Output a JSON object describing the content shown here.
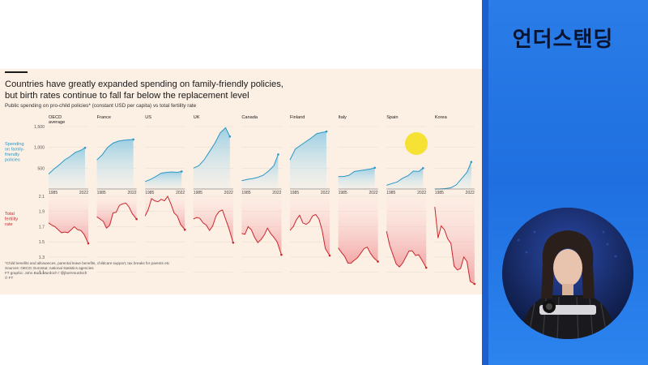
{
  "header": {
    "title_line1": "Countries have greatly expanded spending on family-friendly policies,",
    "title_line2": "but birth rates continue to fall far below the replacement level",
    "subtitle": "Public spending on pro-child policies* (constant USD per capita) vs total fertility rate"
  },
  "notes": {
    "line1": "*Child benefits and allowances, parental leave benefits, childcare support, tax breaks for parents etc",
    "line2": "Sources: OECD; Eurostat; national statistics agencies",
    "line3": "FT graphic: John Burn-Murdoch / @jburnmurdoch",
    "line4": "© FT"
  },
  "brand": "언더스탠딩",
  "chart_data": {
    "type": "area",
    "panels": [
      "OECD average",
      "France",
      "US",
      "UK",
      "Canada",
      "Finland",
      "Italy",
      "Spain",
      "Korea"
    ],
    "x_tick_labels": [
      "1985",
      "2022"
    ],
    "top": {
      "ylabel": "Spending on family-friendly policies",
      "ylim": [
        0,
        1500
      ],
      "yticks": [
        "1,500",
        "1,000",
        "500"
      ],
      "color": "#2a98c8",
      "x": [
        1985,
        1990,
        1995,
        2000,
        2005,
        2010,
        2015,
        2019
      ],
      "series": [
        {
          "name": "OECD average",
          "values": [
            360,
            480,
            580,
            700,
            780,
            880,
            930,
            990
          ]
        },
        {
          "name": "France",
          "values": [
            700,
            820,
            1000,
            1100,
            1150,
            1170,
            1180,
            1190
          ]
        },
        {
          "name": "US",
          "values": [
            180,
            230,
            300,
            380,
            400,
            410,
            400,
            420
          ]
        },
        {
          "name": "UK",
          "values": [
            500,
            560,
            700,
            900,
            1100,
            1350,
            1470,
            1260
          ]
        },
        {
          "name": "Canada",
          "values": [
            200,
            230,
            250,
            280,
            330,
            430,
            560,
            830
          ]
        },
        {
          "name": "Finland",
          "values": [
            700,
            960,
            1050,
            1140,
            1230,
            1330,
            1360,
            1380
          ]
        },
        {
          "name": "Italy",
          "values": [
            300,
            300,
            330,
            420,
            440,
            460,
            480,
            510
          ]
        },
        {
          "name": "Spain",
          "values": [
            90,
            130,
            170,
            260,
            320,
            430,
            420,
            500
          ]
        },
        {
          "name": "Korea",
          "values": [
            0,
            0,
            10,
            30,
            100,
            250,
            400,
            650
          ]
        }
      ]
    },
    "bottom": {
      "ylabel": "Total fertility rate",
      "ylim": [
        1.0,
        2.1
      ],
      "yticks": [
        "2.1",
        "1.9",
        "1.7",
        "1.5",
        "1.3",
        "1.1"
      ],
      "color": "#c8282e",
      "x": [
        1985,
        1988,
        1991,
        1994,
        1997,
        2000,
        2003,
        2006,
        2009,
        2012,
        2015,
        2018,
        2022
      ],
      "series": [
        {
          "name": "OECD average",
          "values": [
            1.75,
            1.72,
            1.7,
            1.66,
            1.62,
            1.63,
            1.62,
            1.66,
            1.7,
            1.66,
            1.65,
            1.6,
            1.48
          ]
        },
        {
          "name": "France",
          "values": [
            1.83,
            1.8,
            1.77,
            1.68,
            1.72,
            1.88,
            1.89,
            1.98,
            2.0,
            2.01,
            1.96,
            1.87,
            1.8
          ]
        },
        {
          "name": "US",
          "values": [
            1.84,
            1.93,
            2.07,
            2.04,
            2.03,
            2.06,
            2.04,
            2.1,
            2.0,
            1.88,
            1.84,
            1.73,
            1.66
          ]
        },
        {
          "name": "UK",
          "values": [
            1.8,
            1.82,
            1.81,
            1.75,
            1.72,
            1.65,
            1.71,
            1.84,
            1.9,
            1.92,
            1.8,
            1.68,
            1.49
          ]
        },
        {
          "name": "Canada",
          "values": [
            1.61,
            1.6,
            1.7,
            1.66,
            1.56,
            1.49,
            1.53,
            1.59,
            1.68,
            1.61,
            1.56,
            1.5,
            1.33
          ]
        },
        {
          "name": "Finland",
          "values": [
            1.65,
            1.7,
            1.79,
            1.85,
            1.75,
            1.73,
            1.76,
            1.84,
            1.86,
            1.8,
            1.65,
            1.41,
            1.32
          ]
        },
        {
          "name": "Italy",
          "values": [
            1.42,
            1.36,
            1.31,
            1.22,
            1.22,
            1.26,
            1.29,
            1.35,
            1.41,
            1.43,
            1.35,
            1.29,
            1.24
          ]
        },
        {
          "name": "Spain",
          "values": [
            1.64,
            1.45,
            1.33,
            1.21,
            1.17,
            1.22,
            1.3,
            1.38,
            1.38,
            1.32,
            1.33,
            1.26,
            1.16
          ]
        },
        {
          "name": "Korea",
          "values": [
            1.96,
            1.55,
            1.71,
            1.66,
            1.54,
            1.48,
            1.18,
            1.13,
            1.15,
            1.3,
            1.24,
            0.98,
            0.78
          ]
        }
      ]
    }
  }
}
